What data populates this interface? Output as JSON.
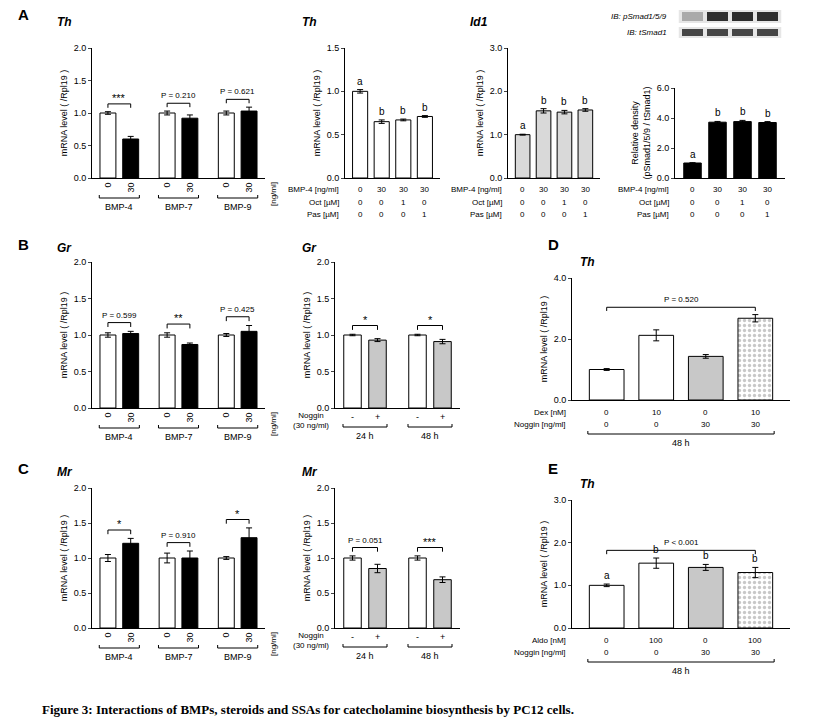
{
  "figure": {
    "caption": "Figure 3: Interactions of BMPs, steroids and SSAs for catecholamine biosynthesis by PC12 cells."
  },
  "chart_data": [
    {
      "type": "bar",
      "panel": "A",
      "title": "Th",
      "ylabel": "mRNA level ( /Rpl19 )",
      "xlabel": "[ng/ml]",
      "categories": [
        "0",
        "30",
        "0",
        "30",
        "0",
        "30"
      ],
      "groups": [
        "BMP-4",
        "BMP-4",
        "BMP-7",
        "BMP-7",
        "BMP-9",
        "BMP-9"
      ],
      "values": [
        1.0,
        0.6,
        1.0,
        0.92,
        1.0,
        1.03
      ],
      "errors": [
        0.02,
        0.04,
        0.03,
        0.05,
        0.03,
        0.06
      ],
      "colors": [
        "#ffffff",
        "#000000",
        "#ffffff",
        "#000000",
        "#ffffff",
        "#000000"
      ],
      "ylim": [
        0,
        2
      ],
      "yticks": [
        {
          "value": 0,
          "label": "0.0"
        },
        0.5,
        {
          "value": 1,
          "label": "1.0"
        },
        1.5,
        {
          "value": 2,
          "label": "2.0"
        }
      ],
      "grid": false,
      "brackets": [
        {
          "text": "***",
          "from": 0,
          "to": 1
        },
        {
          "text": "P = 0.210",
          "from": 2,
          "to": 3
        },
        {
          "text": "P = 0.621",
          "from": 4,
          "to": 5
        }
      ]
    },
    {
      "type": "bar",
      "title": "Th",
      "ylabel": "mRNA level ( /Rpl19 )",
      "values": [
        1.0,
        0.65,
        0.67,
        0.71
      ],
      "errors": [
        0.02,
        0.02,
        0.01,
        0.01
      ],
      "colors": [
        "#ffffff",
        "#ffffff",
        "#ffffff",
        "#ffffff"
      ],
      "ylim": [
        0,
        1.5
      ],
      "yticks": [
        {
          "value": 0,
          "label": "0.0"
        },
        0.5,
        {
          "value": 1,
          "label": "1.0"
        },
        1.5
      ],
      "grid": false,
      "letters": [
        "a",
        "b",
        "b",
        "b"
      ],
      "conditions": [
        {
          "label": "BMP-4 [ng/ml]",
          "values": [
            0,
            30,
            30,
            30
          ]
        },
        {
          "label": "Oct [µM]",
          "values": [
            0,
            0,
            1,
            0
          ]
        },
        {
          "label": "Pas [µM]",
          "values": [
            0,
            0,
            0,
            1
          ]
        }
      ]
    },
    {
      "type": "bar",
      "title": "Id1",
      "ylabel": "mRNA level ( /Rpl19 )",
      "values": [
        1.0,
        1.55,
        1.52,
        1.57
      ],
      "errors": [
        0.01,
        0.05,
        0.04,
        0.03
      ],
      "colors": [
        "#d9d9d9",
        "#d9d9d9",
        "#d9d9d9",
        "#d9d9d9"
      ],
      "ylim": [
        0,
        3
      ],
      "yticks": [
        {
          "value": 0,
          "label": "0.0"
        },
        {
          "value": 1,
          "label": "1.0"
        },
        {
          "value": 2,
          "label": "2.0"
        },
        {
          "value": 3,
          "label": "3.0"
        }
      ],
      "grid": false,
      "letters": [
        "a",
        "b",
        "b",
        "b"
      ],
      "conditions": [
        {
          "label": "BMP-4 [ng/ml]",
          "values": [
            0,
            30,
            30,
            30
          ]
        },
        {
          "label": "Oct [µM]",
          "values": [
            0,
            0,
            1,
            0
          ]
        },
        {
          "label": "Pas [µM]",
          "values": [
            0,
            0,
            0,
            1
          ]
        }
      ]
    },
    {
      "type": "bar",
      "ylabel": "Relative density (pSmad1/5/9 / tSmad1)",
      "blot": [
        "IB: pSmad1/5/9",
        "IB: tSmad1"
      ],
      "values": [
        1.0,
        3.72,
        3.76,
        3.7
      ],
      "errors": [
        0.02,
        0.05,
        0.08,
        0.06
      ],
      "colors": [
        "#000000",
        "#000000",
        "#000000",
        "#000000"
      ],
      "ylim": [
        0,
        6
      ],
      "yticks": [
        {
          "value": 0,
          "label": "0.0"
        },
        {
          "value": 2,
          "label": "2.0"
        },
        {
          "value": 4,
          "label": "4.0"
        },
        {
          "value": 6,
          "label": "6.0"
        }
      ],
      "grid": false,
      "letters": [
        "a",
        "b",
        "b",
        "b"
      ],
      "conditions": [
        {
          "label": "BMP-4 [ng/ml]",
          "values": [
            0,
            30,
            30,
            30
          ]
        },
        {
          "label": "Oct [µM]",
          "values": [
            0,
            0,
            1,
            0
          ]
        },
        {
          "label": "Pas [µM]",
          "values": [
            0,
            0,
            0,
            1
          ]
        }
      ]
    },
    {
      "type": "bar",
      "panel": "B",
      "title": "Gr",
      "ylabel": "mRNA level ( /Rpl19 )",
      "xlabel": "[ng/ml]",
      "categories": [
        "0",
        "30",
        "0",
        "30",
        "0",
        "30"
      ],
      "groups": [
        "BMP-4",
        "BMP-4",
        "BMP-7",
        "BMP-7",
        "BMP-9",
        "BMP-9"
      ],
      "values": [
        1.0,
        1.02,
        1.0,
        0.87,
        1.0,
        1.05
      ],
      "errors": [
        0.03,
        0.03,
        0.03,
        0.02,
        0.02,
        0.08
      ],
      "colors": [
        "#ffffff",
        "#000000",
        "#ffffff",
        "#000000",
        "#ffffff",
        "#000000"
      ],
      "ylim": [
        0,
        2
      ],
      "yticks": [
        {
          "value": 0,
          "label": "0.0"
        },
        0.5,
        {
          "value": 1,
          "label": "1.0"
        },
        1.5,
        {
          "value": 2,
          "label": "2.0"
        }
      ],
      "grid": false,
      "brackets": [
        {
          "text": "P = 0.599",
          "from": 0,
          "to": 1
        },
        {
          "text": "**",
          "from": 2,
          "to": 3
        },
        {
          "text": "P = 0.425",
          "from": 4,
          "to": 5
        }
      ]
    },
    {
      "type": "bar",
      "title": "Gr",
      "ylabel": "mRNA level ( /Rpl19 )",
      "row_label": "Noggin (30 ng/ml)",
      "categories": [
        "-",
        "+",
        "-",
        "+"
      ],
      "groups": [
        "24 h",
        "24 h",
        "48 h",
        "48 h"
      ],
      "values": [
        1.0,
        0.93,
        1.0,
        0.91
      ],
      "errors": [
        0.01,
        0.02,
        0.01,
        0.03
      ],
      "colors": [
        "#ffffff",
        "#c8c8c8",
        "#ffffff",
        "#c8c8c8"
      ],
      "ylim": [
        0,
        2
      ],
      "yticks": [
        {
          "value": 0,
          "label": "0.0"
        },
        0.5,
        {
          "value": 1,
          "label": "1.0"
        },
        1.5,
        {
          "value": 2,
          "label": "2.0"
        }
      ],
      "grid": false,
      "brackets": [
        {
          "text": "*",
          "from": 0,
          "to": 1
        },
        {
          "text": "*",
          "from": 2,
          "to": 3
        }
      ]
    },
    {
      "type": "bar",
      "panel": "C",
      "title": "Mr",
      "ylabel": "mRNA level ( /Rpl19 )",
      "xlabel": "[ng/ml]",
      "categories": [
        "0",
        "30",
        "0",
        "30",
        "0",
        "30"
      ],
      "groups": [
        "BMP-4",
        "BMP-4",
        "BMP-7",
        "BMP-7",
        "BMP-9",
        "BMP-9"
      ],
      "values": [
        1.0,
        1.21,
        1.0,
        1.0,
        1.0,
        1.29
      ],
      "errors": [
        0.05,
        0.07,
        0.07,
        0.1,
        0.02,
        0.14
      ],
      "colors": [
        "#ffffff",
        "#000000",
        "#ffffff",
        "#000000",
        "#ffffff",
        "#000000"
      ],
      "ylim": [
        0,
        2
      ],
      "yticks": [
        {
          "value": 0,
          "label": "0.0"
        },
        0.5,
        {
          "value": 1,
          "label": "1.0"
        },
        1.5,
        {
          "value": 2,
          "label": "2.0"
        }
      ],
      "grid": false,
      "brackets": [
        {
          "text": "*",
          "from": 0,
          "to": 1
        },
        {
          "text": "P = 0.910",
          "from": 2,
          "to": 3
        },
        {
          "text": "*",
          "from": 4,
          "to": 5
        }
      ]
    },
    {
      "type": "bar",
      "title": "Mr",
      "ylabel": "mRNA level ( /Rpl19 )",
      "row_label": "Noggin (30 ng/ml)",
      "categories": [
        "-",
        "+",
        "-",
        "+"
      ],
      "groups": [
        "24 h",
        "24 h",
        "48 h",
        "48 h"
      ],
      "values": [
        1.0,
        0.85,
        1.0,
        0.69
      ],
      "errors": [
        0.03,
        0.06,
        0.03,
        0.04
      ],
      "colors": [
        "#ffffff",
        "#c8c8c8",
        "#ffffff",
        "#c8c8c8"
      ],
      "ylim": [
        0,
        2
      ],
      "yticks": [
        {
          "value": 0,
          "label": "0.0"
        },
        0.5,
        {
          "value": 1,
          "label": "1.0"
        },
        1.5,
        {
          "value": 2,
          "label": "2.0"
        }
      ],
      "grid": false,
      "brackets": [
        {
          "text": "P = 0.051",
          "from": 0,
          "to": 1
        },
        {
          "text": "***",
          "from": 2,
          "to": 3
        }
      ]
    },
    {
      "type": "bar",
      "panel": "D",
      "title": "Th",
      "ylabel": "mRNA level ( /Rpl19 )",
      "groups": [
        "48 h",
        "48 h",
        "48 h",
        "48 h"
      ],
      "series": [
        {
          "marker": "solid",
          "colors": [
            "#ffffff",
            null,
            "#c8c8c8",
            null
          ],
          "values": [
            1.0,
            null,
            1.43,
            null
          ],
          "errors": [
            0.03,
            null,
            0.06,
            null
          ]
        },
        {
          "marker": "dotted",
          "colors": [
            null,
            "#ffffff",
            null,
            "#c8c8c8"
          ],
          "values": [
            null,
            2.12,
            null,
            2.68
          ],
          "errors": [
            null,
            0.18,
            null,
            0.12
          ]
        }
      ],
      "ylim": [
        0,
        4
      ],
      "yticks": [
        {
          "value": 0,
          "label": "0.0"
        },
        {
          "value": 2,
          "label": "2.0"
        },
        {
          "value": 4,
          "label": "4.0"
        }
      ],
      "grid": false,
      "brackets": [
        {
          "text": "P = 0.520",
          "from": 0,
          "to": 3
        }
      ],
      "conditions": [
        {
          "label": "Dex [nM]",
          "values": [
            0,
            10,
            0,
            10
          ]
        },
        {
          "label": "Noggin [ng/ml]",
          "values": [
            0,
            0,
            30,
            30
          ]
        }
      ]
    },
    {
      "type": "bar",
      "panel": "E",
      "title": "Th",
      "ylabel": "mRNA level ( /Rpl19 )",
      "groups": [
        "48 h",
        "48 h",
        "48 h",
        "48 h"
      ],
      "series": [
        {
          "marker": "solid",
          "colors": [
            "#ffffff",
            null,
            "#c8c8c8",
            null
          ],
          "values": [
            1.0,
            null,
            1.42,
            null
          ],
          "errors": [
            0.03,
            null,
            0.07,
            null
          ]
        },
        {
          "marker": "dotted",
          "colors": [
            null,
            "#ffffff",
            null,
            "#c8c8c8"
          ],
          "values": [
            null,
            1.52,
            null,
            1.3
          ],
          "errors": [
            null,
            0.12,
            null,
            0.12
          ]
        }
      ],
      "ylim": [
        0,
        3
      ],
      "yticks": [
        {
          "value": 0,
          "label": "0.0"
        },
        {
          "value": 1,
          "label": "1.0"
        },
        {
          "value": 2,
          "label": "2.0"
        },
        {
          "value": 3,
          "label": "3.0"
        }
      ],
      "grid": false,
      "letters": [
        "a",
        "b",
        "b",
        "b"
      ],
      "brackets": [
        {
          "text": "P < 0.001",
          "from": 0,
          "to": 3
        }
      ],
      "conditions": [
        {
          "label": "Aldo [nM]",
          "values": [
            0,
            100,
            0,
            100
          ]
        },
        {
          "label": "Noggin [ng/ml]",
          "values": [
            0,
            0,
            30,
            30
          ]
        }
      ]
    }
  ]
}
